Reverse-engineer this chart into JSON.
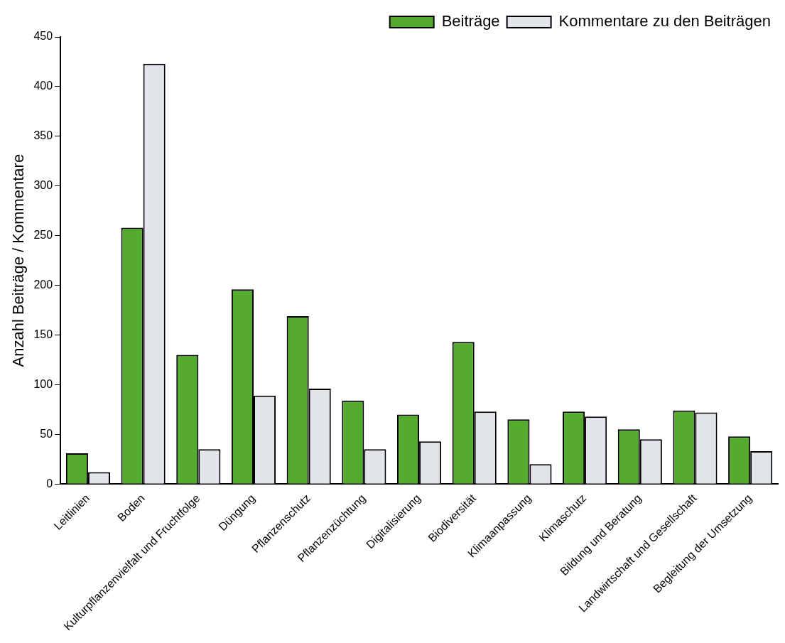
{
  "chart_data": {
    "type": "bar",
    "ylabel": "Anzahl Beiträge / Kommentare",
    "categories": [
      "Leitlinien",
      "Boden",
      "Kulturpflanzenvielfalt und Fruchtfolge",
      "Düngung",
      "Pflanzenschutz",
      "Pflanzenzüchtung",
      "Digitalisierung",
      "Biodiversität",
      "Klimaanpassung",
      "Klimaschutz",
      "Bildung und Beratung",
      "Landwirtschaft und Gesellschaft",
      "Begleitung der Umsetzung"
    ],
    "series": [
      {
        "name": "Beiträge",
        "color": "#55ab2e",
        "values": [
          31,
          258,
          130,
          196,
          169,
          84,
          70,
          143,
          65,
          73,
          55,
          74,
          48
        ]
      },
      {
        "name": "Kommentare zu den Beiträgen",
        "color": "#e1e4e8",
        "values": [
          12,
          423,
          35,
          89,
          96,
          35,
          43,
          73,
          20,
          68,
          45,
          72,
          33
        ]
      }
    ],
    "ylim": [
      0,
      450
    ],
    "yticks": [
      0,
      50,
      100,
      150,
      200,
      250,
      300,
      350,
      400,
      450
    ],
    "grid": false,
    "legend": "top right"
  }
}
